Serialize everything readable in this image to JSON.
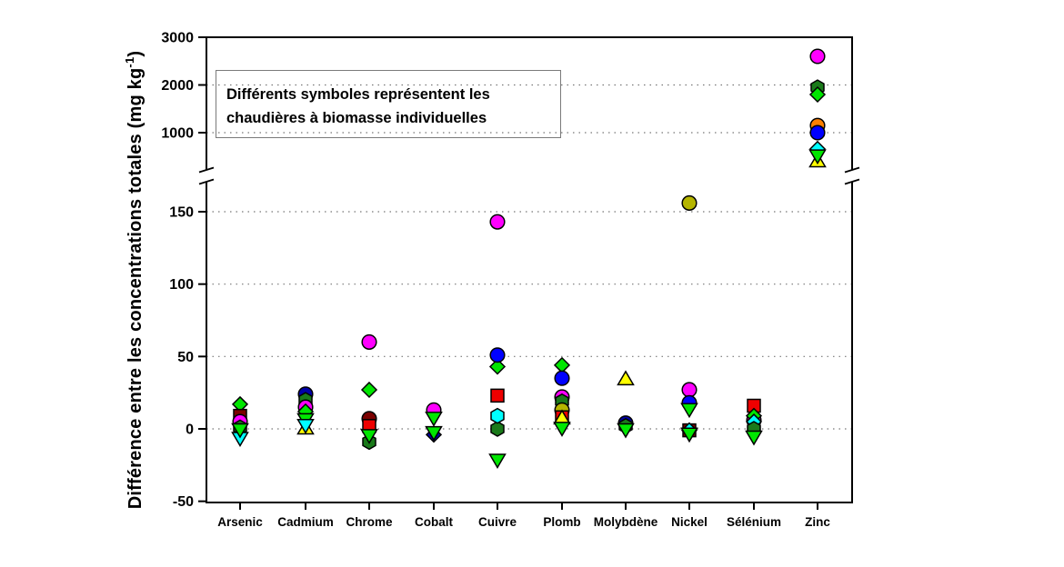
{
  "figure": {
    "y_axis_label": {
      "main": "Différence entre les concentrations totales (mg kg",
      "superscript": "-1",
      "suffix": ")"
    },
    "annotation": {
      "line1": "Différents symboles représentent les",
      "line2": "chaudières à biomasse individuelles"
    }
  },
  "chart_data": {
    "type": "scatter",
    "title": "",
    "ylabel": "Différence entre les concentrations totales (mg kg⁻¹)",
    "xlabel": "",
    "annotation": "Différents symboles représentent les chaudières à biomasse individuelles",
    "legend": "none",
    "grid": "dotted horizontal gridlines",
    "axis_break": true,
    "categories": [
      "Arsenic",
      "Cadmium",
      "Chrome",
      "Cobalt",
      "Cuivre",
      "Plomb",
      "Molybdène",
      "Nickel",
      "Sélénium",
      "Zinc"
    ],
    "top_axis": {
      "ticks": [
        3000,
        2000,
        1000
      ],
      "gridlines": [
        2000,
        1000
      ],
      "range": [
        245,
        3000
      ]
    },
    "bottom_axis": {
      "ticks": [
        150,
        100,
        50,
        0,
        -50
      ],
      "gridlines": [
        150,
        100,
        50,
        0
      ],
      "range": [
        -52,
        172
      ]
    },
    "symbol_colors": {
      "magenta": "#FF00FF",
      "navy": "#0000A8",
      "blue": "#0000FF",
      "orange": "#FF8000",
      "olive": "#B5B500",
      "maroon": "#7B0000",
      "red": "#EE0000",
      "green": "#00E600",
      "darkgreen": "#1A7A1A",
      "cyan": "#00FFFF",
      "yellow": "#FFFF00"
    },
    "points": [
      {
        "category": "Arsenic",
        "value": 17,
        "symbol": "diamond",
        "color": "green"
      },
      {
        "category": "Arsenic",
        "value": 9,
        "symbol": "square",
        "color": "maroon"
      },
      {
        "category": "Arsenic",
        "value": 5,
        "symbol": "circle",
        "color": "magenta"
      },
      {
        "category": "Arsenic",
        "value": 1,
        "symbol": "hexagon",
        "color": "darkgreen"
      },
      {
        "category": "Arsenic",
        "value": -6,
        "symbol": "triangle-down",
        "color": "cyan"
      },
      {
        "category": "Arsenic",
        "value": 0,
        "symbol": "triangle-down",
        "color": "green"
      },
      {
        "category": "Cadmium",
        "value": 24,
        "symbol": "circle",
        "color": "navy"
      },
      {
        "category": "Cadmium",
        "value": 20,
        "symbol": "hexagon",
        "color": "darkgreen"
      },
      {
        "category": "Cadmium",
        "value": 15,
        "symbol": "circle",
        "color": "magenta"
      },
      {
        "category": "Cadmium",
        "value": 12,
        "symbol": "diamond",
        "color": "green"
      },
      {
        "category": "Cadmium",
        "value": 0,
        "symbol": "triangle-up",
        "color": "yellow"
      },
      {
        "category": "Cadmium",
        "value": 7,
        "symbol": "triangle-down",
        "color": "green"
      },
      {
        "category": "Cadmium",
        "value": 3,
        "symbol": "triangle-down",
        "color": "cyan"
      },
      {
        "category": "Chrome",
        "value": 60,
        "symbol": "circle",
        "color": "magenta"
      },
      {
        "category": "Chrome",
        "value": 27,
        "symbol": "diamond",
        "color": "green"
      },
      {
        "category": "Chrome",
        "value": 7,
        "symbol": "circle",
        "color": "maroon"
      },
      {
        "category": "Chrome",
        "value": 2,
        "symbol": "square",
        "color": "red"
      },
      {
        "category": "Chrome",
        "value": -9,
        "symbol": "hexagon",
        "color": "darkgreen"
      },
      {
        "category": "Chrome",
        "value": -4,
        "symbol": "triangle-down",
        "color": "green"
      },
      {
        "category": "Cobalt",
        "value": 13,
        "symbol": "circle",
        "color": "magenta"
      },
      {
        "category": "Cobalt",
        "value": -4,
        "symbol": "diamond",
        "color": "navy"
      },
      {
        "category": "Cobalt",
        "value": 8,
        "symbol": "triangle-down",
        "color": "green"
      },
      {
        "category": "Cobalt",
        "value": -2,
        "symbol": "triangle-down",
        "color": "green"
      },
      {
        "category": "Cuivre",
        "value": 143,
        "symbol": "circle",
        "color": "magenta"
      },
      {
        "category": "Cuivre",
        "value": 43,
        "symbol": "diamond",
        "color": "green"
      },
      {
        "category": "Cuivre",
        "value": 51,
        "symbol": "circle",
        "color": "blue"
      },
      {
        "category": "Cuivre",
        "value": 23,
        "symbol": "square",
        "color": "red"
      },
      {
        "category": "Cuivre",
        "value": 0,
        "symbol": "hexagon",
        "color": "darkgreen"
      },
      {
        "category": "Cuivre",
        "value": 9,
        "symbol": "hexagon",
        "color": "cyan"
      },
      {
        "category": "Cuivre",
        "value": -21,
        "symbol": "triangle-down",
        "color": "green"
      },
      {
        "category": "Plomb",
        "value": 44,
        "symbol": "diamond",
        "color": "green"
      },
      {
        "category": "Plomb",
        "value": 35,
        "symbol": "circle",
        "color": "blue"
      },
      {
        "category": "Plomb",
        "value": 22,
        "symbol": "circle",
        "color": "magenta"
      },
      {
        "category": "Plomb",
        "value": 19,
        "symbol": "hexagon",
        "color": "darkgreen"
      },
      {
        "category": "Plomb",
        "value": 13,
        "symbol": "circle",
        "color": "olive"
      },
      {
        "category": "Plomb",
        "value": 8,
        "symbol": "square",
        "color": "red"
      },
      {
        "category": "Plomb",
        "value": 7,
        "symbol": "triangle-up",
        "color": "yellow"
      },
      {
        "category": "Plomb",
        "value": 1,
        "symbol": "triangle-down",
        "color": "green"
      },
      {
        "category": "Molybdène",
        "value": 34,
        "symbol": "triangle-up",
        "color": "yellow"
      },
      {
        "category": "Molybdène",
        "value": 4,
        "symbol": "circle",
        "color": "navy"
      },
      {
        "category": "Molybdène",
        "value": 2,
        "symbol": "hexagon",
        "color": "darkgreen"
      },
      {
        "category": "Molybdène",
        "value": 0,
        "symbol": "triangle-down",
        "color": "green"
      },
      {
        "category": "Nickel",
        "value": 156,
        "symbol": "circle",
        "color": "olive"
      },
      {
        "category": "Nickel",
        "value": 27,
        "symbol": "circle",
        "color": "magenta"
      },
      {
        "category": "Nickel",
        "value": 18,
        "symbol": "circle",
        "color": "blue"
      },
      {
        "category": "Nickel",
        "value": 14,
        "symbol": "triangle-down",
        "color": "green"
      },
      {
        "category": "Nickel",
        "value": -1,
        "symbol": "square",
        "color": "maroon"
      },
      {
        "category": "Nickel",
        "value": -1,
        "symbol": "diamond",
        "color": "cyan"
      },
      {
        "category": "Nickel",
        "value": -3,
        "symbol": "triangle-down",
        "color": "green"
      },
      {
        "category": "Sélénium",
        "value": 16,
        "symbol": "square",
        "color": "red"
      },
      {
        "category": "Sélénium",
        "value": 6,
        "symbol": "circle",
        "color": "magenta"
      },
      {
        "category": "Sélénium",
        "value": 9,
        "symbol": "diamond",
        "color": "green"
      },
      {
        "category": "Sélénium",
        "value": 5,
        "symbol": "diamond",
        "color": "cyan"
      },
      {
        "category": "Sélénium",
        "value": 0,
        "symbol": "hexagon",
        "color": "darkgreen"
      },
      {
        "category": "Sélénium",
        "value": -5,
        "symbol": "triangle-down",
        "color": "green"
      },
      {
        "category": "Zinc",
        "value": 2600,
        "symbol": "circle",
        "color": "magenta"
      },
      {
        "category": "Zinc",
        "value": 1950,
        "symbol": "hexagon",
        "color": "darkgreen"
      },
      {
        "category": "Zinc",
        "value": 1800,
        "symbol": "diamond",
        "color": "green"
      },
      {
        "category": "Zinc",
        "value": 1150,
        "symbol": "circle",
        "color": "orange"
      },
      {
        "category": "Zinc",
        "value": 1000,
        "symbol": "circle",
        "color": "blue"
      },
      {
        "category": "Zinc",
        "value": 660,
        "symbol": "diamond",
        "color": "cyan"
      },
      {
        "category": "Zinc",
        "value": 390,
        "symbol": "triangle-up",
        "color": "yellow"
      },
      {
        "category": "Zinc",
        "value": 530,
        "symbol": "triangle-down",
        "color": "green"
      }
    ]
  }
}
